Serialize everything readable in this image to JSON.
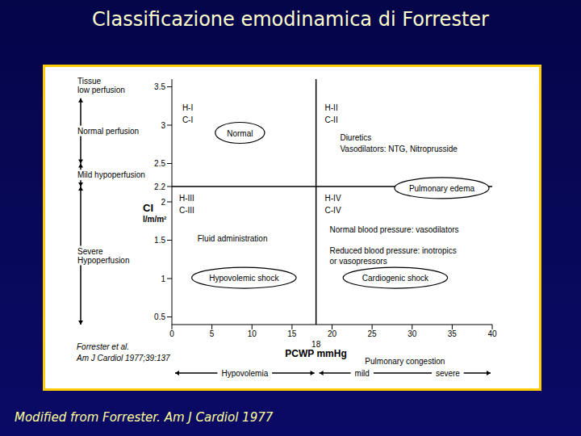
{
  "title": "Classificazione emodinamica di Forrester",
  "footer": "Modified from Forrester. Am J Cardiol 1977",
  "chart_data": {
    "type": "quadrant",
    "x_label": "PCWP mmHg",
    "y_label": [
      "CI",
      "l/m/m²"
    ],
    "xlim": [
      0,
      40
    ],
    "xticks": [
      0,
      5,
      10,
      15,
      20,
      25,
      30,
      35,
      40
    ],
    "ylim": [
      0.4,
      3.6
    ],
    "yticks": [
      0.5,
      1,
      1.5,
      2,
      2.2,
      2.5,
      3,
      3.5
    ],
    "grid": false,
    "thresholds": {
      "x": 18,
      "y": 2.2
    },
    "annotations": [
      {
        "text": "H-I",
        "x": 1.3,
        "y": 3.23
      },
      {
        "text": "C-I",
        "x": 1.3,
        "y": 3.07
      },
      {
        "text": "H-II",
        "x": 19.1,
        "y": 3.23
      },
      {
        "text": "C-II",
        "x": 19.1,
        "y": 3.07
      },
      {
        "text": "Diuretics",
        "x": 21,
        "y": 2.84
      },
      {
        "text": "Vasodilators: NTG, Nitroprusside",
        "x": 21,
        "y": 2.7
      },
      {
        "text": "H-III",
        "x": 0.9,
        "y": 2.05
      },
      {
        "text": "C-III",
        "x": 0.9,
        "y": 1.9
      },
      {
        "text": "Fluid administration",
        "x": 3.2,
        "y": 1.53
      },
      {
        "text": "H-IV",
        "x": 19.1,
        "y": 2.05
      },
      {
        "text": "C-IV",
        "x": 19.1,
        "y": 1.9
      },
      {
        "text": "Normal blood pressure: vasodilators",
        "x": 19.7,
        "y": 1.64
      },
      {
        "text": "Reduced blood pressure: inotropics",
        "x": 19.7,
        "y": 1.37
      },
      {
        "text": "or vasopressors",
        "x": 19.7,
        "y": 1.23
      }
    ],
    "regions": [
      {
        "text": "Normal",
        "x": 8.5,
        "y": 2.9
      },
      {
        "text": "Pulmonary edema",
        "x": 33.7,
        "y": 2.18
      },
      {
        "text": "Hypovolemic shock",
        "x": 9,
        "y": 1.01
      },
      {
        "text": "Cardiogenic shock",
        "x": 27.9,
        "y": 1.01
      }
    ],
    "y_heading": [
      "Tissue",
      "low perfusion"
    ],
    "y_ranges": [
      {
        "labels": [
          "Normal perfusion"
        ],
        "from": 2.5,
        "to": 3.35
      },
      {
        "labels": [
          "Mild hypoperfusion"
        ],
        "from": 2.2,
        "to": 2.5
      },
      {
        "labels": [
          "Severe",
          "Hypoperfusion"
        ],
        "from": 0.4,
        "to": 2.2
      }
    ],
    "x_ranges": [
      {
        "labels": [
          "Hypovolemia"
        ],
        "from": 0,
        "to": 18
      },
      {
        "title": "Pulmonary congestion",
        "labels": [
          "mild",
          "severe"
        ],
        "from": 18,
        "to": 40
      }
    ],
    "citation": [
      "Forrester et al.",
      "Am J Cardiol 1977;39:137"
    ]
  }
}
